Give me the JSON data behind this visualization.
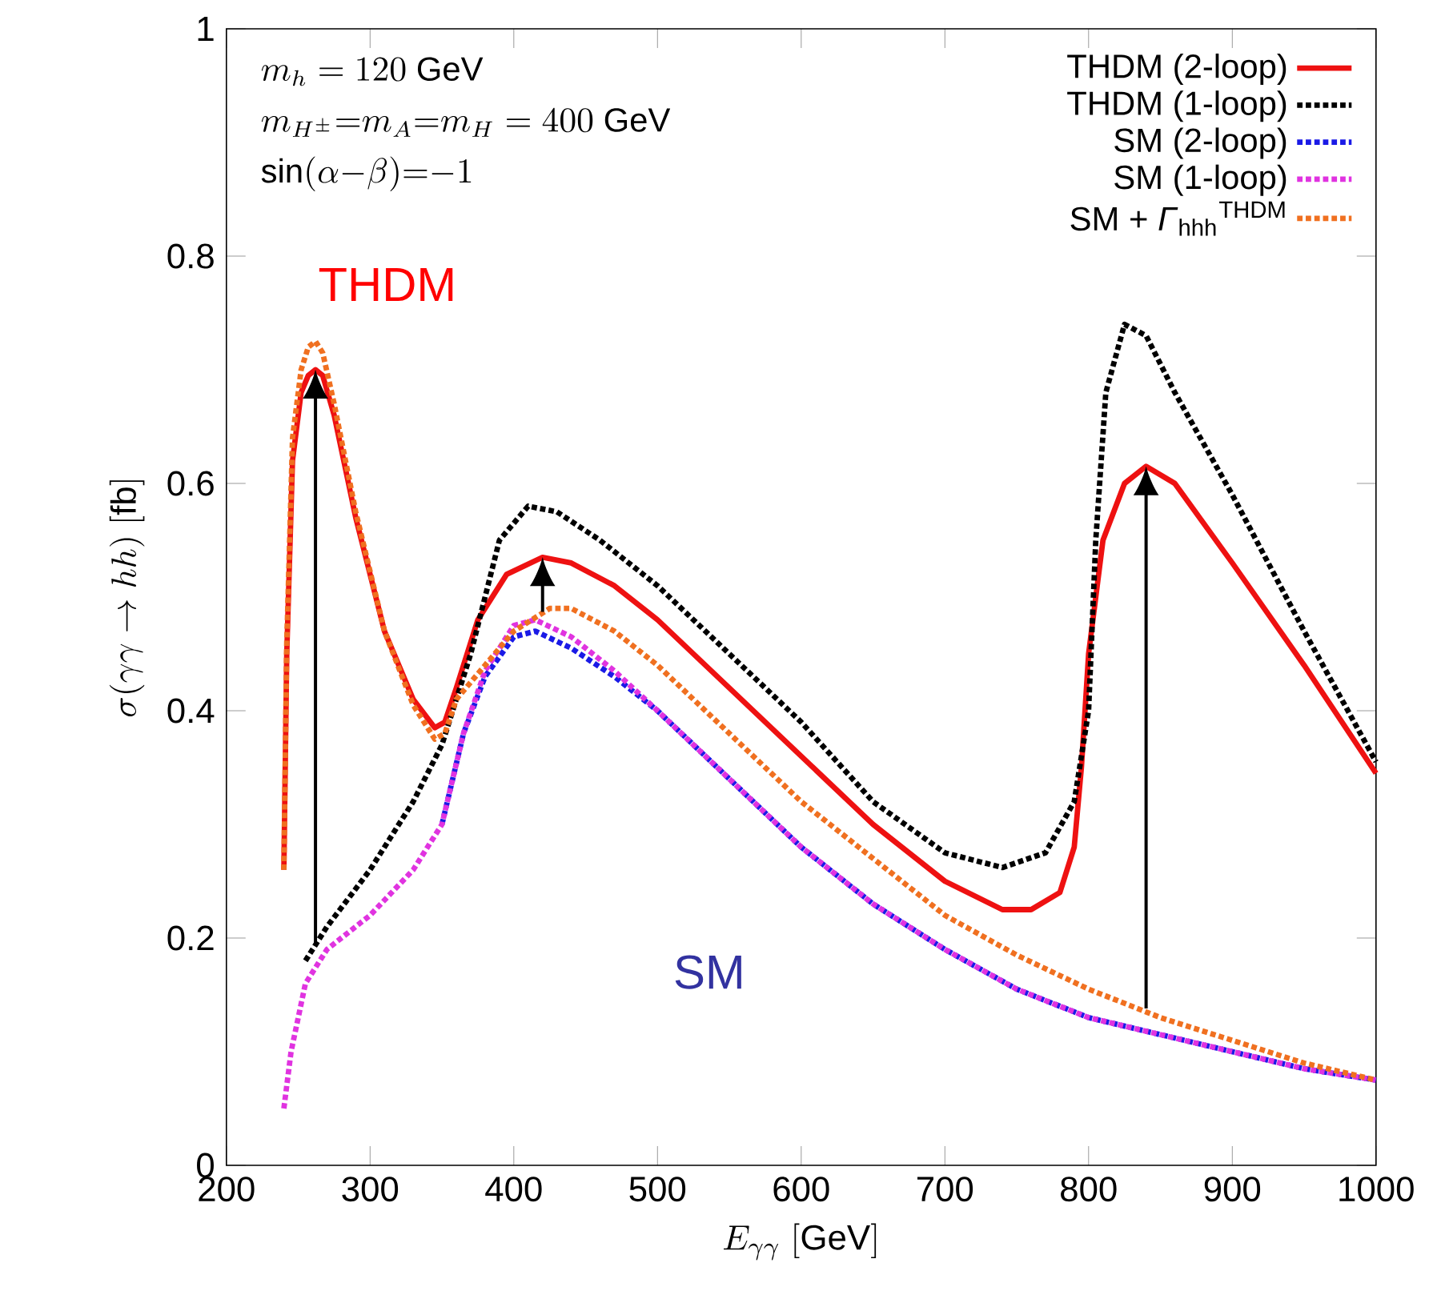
{
  "chart_data": {
    "type": "line",
    "xlabel": "E_{\\gamma\\gamma}\\ [\\mathrm{GeV}]",
    "ylabel": "\\sigma(\\gamma\\gamma\\to hh)\\ [\\mathrm{fb}]",
    "xlim": [
      200,
      1000
    ],
    "xticks": [
      200,
      300,
      400,
      500,
      600,
      700,
      800,
      900,
      1000
    ],
    "ylim": [
      0,
      1
    ],
    "yticks": [
      0,
      0.2,
      0.4,
      0.6,
      0.8,
      1
    ],
    "legend": "top right",
    "annotations": [
      "m_h = 120\\ \\mathrm{GeV}",
      "m_{H^{\\pm}}{=}m_A{=}m_H = 400\\ \\mathrm{GeV}",
      "\\sin(\\alpha{-}\\beta){=}{-}1",
      "THDM",
      "SM"
    ],
    "series": [
      {
        "name": "THDM (2-loop)",
        "color": "#ee1111",
        "line_style": "solid",
        "x": [
          240,
          242,
          246,
          252,
          257,
          262,
          267,
          275,
          290,
          310,
          330,
          345,
          352,
          360,
          375,
          395,
          420,
          440,
          470,
          500,
          550,
          600,
          650,
          700,
          740,
          760,
          780,
          790,
          795,
          800,
          810,
          825,
          840,
          860,
          900,
          950,
          1000
        ],
        "values": [
          0.26,
          0.45,
          0.62,
          0.68,
          0.695,
          0.7,
          0.695,
          0.66,
          0.57,
          0.47,
          0.41,
          0.385,
          0.39,
          0.42,
          0.48,
          0.52,
          0.535,
          0.53,
          0.51,
          0.48,
          0.42,
          0.36,
          0.3,
          0.25,
          0.225,
          0.225,
          0.24,
          0.28,
          0.35,
          0.45,
          0.55,
          0.6,
          0.615,
          0.6,
          0.53,
          0.44,
          0.345
        ]
      },
      {
        "name": "THDM (1-loop)",
        "color": "#000000",
        "line_style": "dotted",
        "x": [
          255,
          270,
          300,
          330,
          350,
          370,
          390,
          410,
          430,
          460,
          500,
          550,
          600,
          650,
          700,
          740,
          770,
          790,
          800,
          805,
          812,
          825,
          840,
          860,
          900,
          950,
          1000
        ],
        "values": [
          0.18,
          0.21,
          0.26,
          0.32,
          0.37,
          0.45,
          0.55,
          0.58,
          0.575,
          0.55,
          0.51,
          0.45,
          0.39,
          0.32,
          0.275,
          0.262,
          0.275,
          0.32,
          0.4,
          0.55,
          0.68,
          0.74,
          0.73,
          0.68,
          0.59,
          0.47,
          0.355
        ]
      },
      {
        "name": "SM (2-loop)",
        "color": "#1a1ae6",
        "line_style": "dotted",
        "x": [
          350,
          365,
          380,
          400,
          415,
          440,
          470,
          500,
          550,
          600,
          650,
          700,
          750,
          800,
          850,
          900,
          950,
          1000
        ],
        "values": [
          0.3,
          0.38,
          0.43,
          0.465,
          0.47,
          0.455,
          0.43,
          0.4,
          0.34,
          0.28,
          0.23,
          0.19,
          0.155,
          0.13,
          0.115,
          0.1,
          0.085,
          0.075
        ]
      },
      {
        "name": "SM (1-loop)",
        "color": "#e033e0",
        "line_style": "dotted",
        "x": [
          240,
          245,
          255,
          270,
          300,
          330,
          350,
          365,
          380,
          400,
          415,
          440,
          470,
          500,
          550,
          600,
          650,
          700,
          750,
          800,
          850,
          900,
          950,
          1000
        ],
        "values": [
          0.05,
          0.1,
          0.16,
          0.19,
          0.22,
          0.26,
          0.3,
          0.38,
          0.435,
          0.475,
          0.48,
          0.465,
          0.435,
          0.4,
          0.34,
          0.28,
          0.23,
          0.19,
          0.155,
          0.13,
          0.115,
          0.1,
          0.085,
          0.075
        ]
      },
      {
        "name": "SM + *Γ*$_{hhh}$$^{THDM}$",
        "color": "#f07020",
        "line_style": "dotted",
        "x": [
          240,
          242,
          246,
          252,
          257,
          262,
          267,
          275,
          290,
          310,
          330,
          345,
          352,
          360,
          380,
          400,
          425,
          440,
          470,
          500,
          550,
          600,
          650,
          700,
          750,
          800,
          850,
          900,
          950,
          1000
        ],
        "values": [
          0.26,
          0.46,
          0.64,
          0.7,
          0.72,
          0.725,
          0.715,
          0.67,
          0.575,
          0.47,
          0.405,
          0.375,
          0.38,
          0.41,
          0.44,
          0.47,
          0.49,
          0.49,
          0.47,
          0.44,
          0.38,
          0.32,
          0.27,
          0.22,
          0.185,
          0.155,
          0.13,
          0.11,
          0.09,
          0.075
        ]
      }
    ]
  }
}
